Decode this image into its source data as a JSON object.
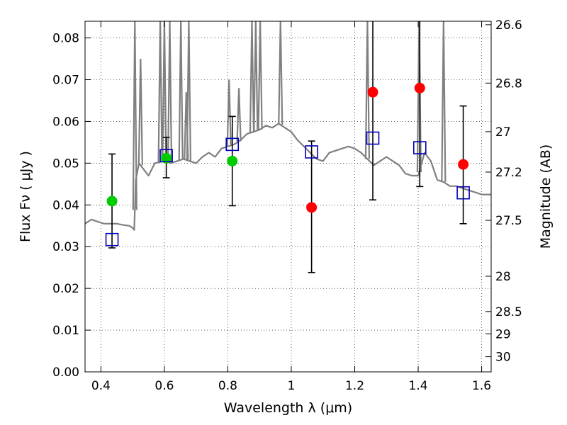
{
  "chart_data": {
    "type": "scatter",
    "xlabel": "Wavelength  λ (μm)",
    "ylabel": "Flux  Fν  ( μJy )",
    "ylabel_right": "Magnitude (AB)",
    "xlim": [
      0.35,
      1.63
    ],
    "ylim": [
      0.0,
      0.084
    ],
    "grid": true,
    "x_ticks": [
      {
        "value": 0.4,
        "label": "0.4"
      },
      {
        "value": 0.6,
        "label": "0.6"
      },
      {
        "value": 0.8,
        "label": "0.8"
      },
      {
        "value": 1.0,
        "label": "1"
      },
      {
        "value": 1.2,
        "label": "1.2"
      },
      {
        "value": 1.4,
        "label": "1.4"
      },
      {
        "value": 1.6,
        "label": "1.6"
      }
    ],
    "y_ticks": [
      {
        "value": 0.0,
        "label": "0.00"
      },
      {
        "value": 0.01,
        "label": "0.01"
      },
      {
        "value": 0.02,
        "label": "0.02"
      },
      {
        "value": 0.03,
        "label": "0.03"
      },
      {
        "value": 0.04,
        "label": "0.04"
      },
      {
        "value": 0.05,
        "label": "0.05"
      },
      {
        "value": 0.06,
        "label": "0.06"
      },
      {
        "value": 0.07,
        "label": "0.07"
      },
      {
        "value": 0.08,
        "label": "0.08"
      }
    ],
    "right_ticks": [
      {
        "value": 26.6,
        "label": "26.6"
      },
      {
        "value": 26.8,
        "label": "26.8"
      },
      {
        "value": 27.0,
        "label": "27"
      },
      {
        "value": 27.2,
        "label": "27.2"
      },
      {
        "value": 27.5,
        "label": "27.5"
      },
      {
        "value": 28.0,
        "label": "28"
      },
      {
        "value": 28.5,
        "label": "28.5"
      },
      {
        "value": 29.0,
        "label": "29"
      },
      {
        "value": 30.0,
        "label": "30"
      }
    ],
    "colors": {
      "model": "#808080",
      "observed_detected": "#00cc00",
      "observed_upper": "#ff0000",
      "model_photometry": "#0000bb",
      "errorbar": "#000000"
    },
    "model_spectrum": {
      "x": [
        0.35,
        0.37,
        0.39,
        0.41,
        0.43,
        0.45,
        0.47,
        0.49,
        0.5,
        0.505,
        0.51,
        0.52,
        0.53,
        0.55,
        0.57,
        0.6,
        0.62,
        0.64,
        0.66,
        0.68,
        0.7,
        0.72,
        0.74,
        0.76,
        0.78,
        0.8,
        0.82,
        0.84,
        0.86,
        0.88,
        0.9,
        0.92,
        0.94,
        0.96,
        0.98,
        1.0,
        1.02,
        1.04,
        1.06,
        1.08,
        1.1,
        1.12,
        1.14,
        1.16,
        1.18,
        1.2,
        1.22,
        1.24,
        1.26,
        1.28,
        1.3,
        1.32,
        1.34,
        1.36,
        1.38,
        1.4,
        1.42,
        1.44,
        1.46,
        1.48,
        1.5,
        1.52,
        1.54,
        1.56,
        1.58,
        1.6,
        1.63
      ],
      "y": [
        0.0355,
        0.0365,
        0.036,
        0.0355,
        0.0355,
        0.0355,
        0.0352,
        0.035,
        0.0345,
        0.034,
        0.046,
        0.05,
        0.049,
        0.047,
        0.05,
        0.0505,
        0.05,
        0.0505,
        0.051,
        0.0505,
        0.05,
        0.0515,
        0.0525,
        0.0515,
        0.0535,
        0.054,
        0.0545,
        0.0555,
        0.057,
        0.0575,
        0.058,
        0.059,
        0.0585,
        0.0595,
        0.0585,
        0.0575,
        0.0555,
        0.054,
        0.0525,
        0.051,
        0.0505,
        0.0525,
        0.053,
        0.0535,
        0.054,
        0.0535,
        0.0525,
        0.051,
        0.0495,
        0.0505,
        0.0515,
        0.0505,
        0.0495,
        0.0475,
        0.047,
        0.047,
        0.0525,
        0.0505,
        0.046,
        0.0455,
        0.0445,
        0.0445,
        0.044,
        0.0435,
        0.043,
        0.0425,
        0.0425
      ]
    },
    "emission_lines": [
      {
        "x": 0.507,
        "peak": 0.084
      },
      {
        "x": 0.525,
        "peak": 0.075
      },
      {
        "x": 0.587,
        "peak": 0.084
      },
      {
        "x": 0.6,
        "peak": 0.084
      },
      {
        "x": 0.617,
        "peak": 0.084
      },
      {
        "x": 0.652,
        "peak": 0.084
      },
      {
        "x": 0.669,
        "peak": 0.067
      },
      {
        "x": 0.677,
        "peak": 0.084
      },
      {
        "x": 0.804,
        "peak": 0.07
      },
      {
        "x": 0.835,
        "peak": 0.068
      },
      {
        "x": 0.876,
        "peak": 0.084
      },
      {
        "x": 0.888,
        "peak": 0.084
      },
      {
        "x": 0.902,
        "peak": 0.084
      },
      {
        "x": 0.966,
        "peak": 0.084
      },
      {
        "x": 1.24,
        "peak": 0.084
      },
      {
        "x": 1.403,
        "peak": 0.084
      },
      {
        "x": 1.48,
        "peak": 0.084
      }
    ],
    "detections": {
      "name": "",
      "points": [
        {
          "x": 0.435,
          "y": 0.0409
        },
        {
          "x": 0.606,
          "y": 0.0512
        },
        {
          "x": 0.814,
          "y": 0.0505
        }
      ]
    },
    "limits": {
      "name": "",
      "points": [
        {
          "x": 1.064,
          "y": 0.0394
        },
        {
          "x": 1.257,
          "y": 0.067
        },
        {
          "x": 1.405,
          "y": 0.068
        },
        {
          "x": 1.542,
          "y": 0.0497
        }
      ]
    },
    "model_points": {
      "name": "",
      "points": [
        {
          "x": 0.435,
          "y": 0.0317,
          "err_low": 0.0297,
          "err_high": 0.0522
        },
        {
          "x": 0.606,
          "y": 0.0518,
          "err_low": 0.0465,
          "err_high": 0.0562
        },
        {
          "x": 0.814,
          "y": 0.0545,
          "err_low": 0.0398,
          "err_high": 0.0612
        },
        {
          "x": 1.064,
          "y": 0.0527,
          "err_low": 0.0238,
          "err_high": 0.0553
        },
        {
          "x": 1.257,
          "y": 0.056,
          "err_low": 0.0412,
          "err_high": 0.084
        },
        {
          "x": 1.405,
          "y": 0.0537,
          "err_low": 0.0444,
          "err_high": 0.084
        },
        {
          "x": 1.542,
          "y": 0.0429,
          "err_low": 0.0355,
          "err_high": 0.0637
        }
      ]
    }
  }
}
